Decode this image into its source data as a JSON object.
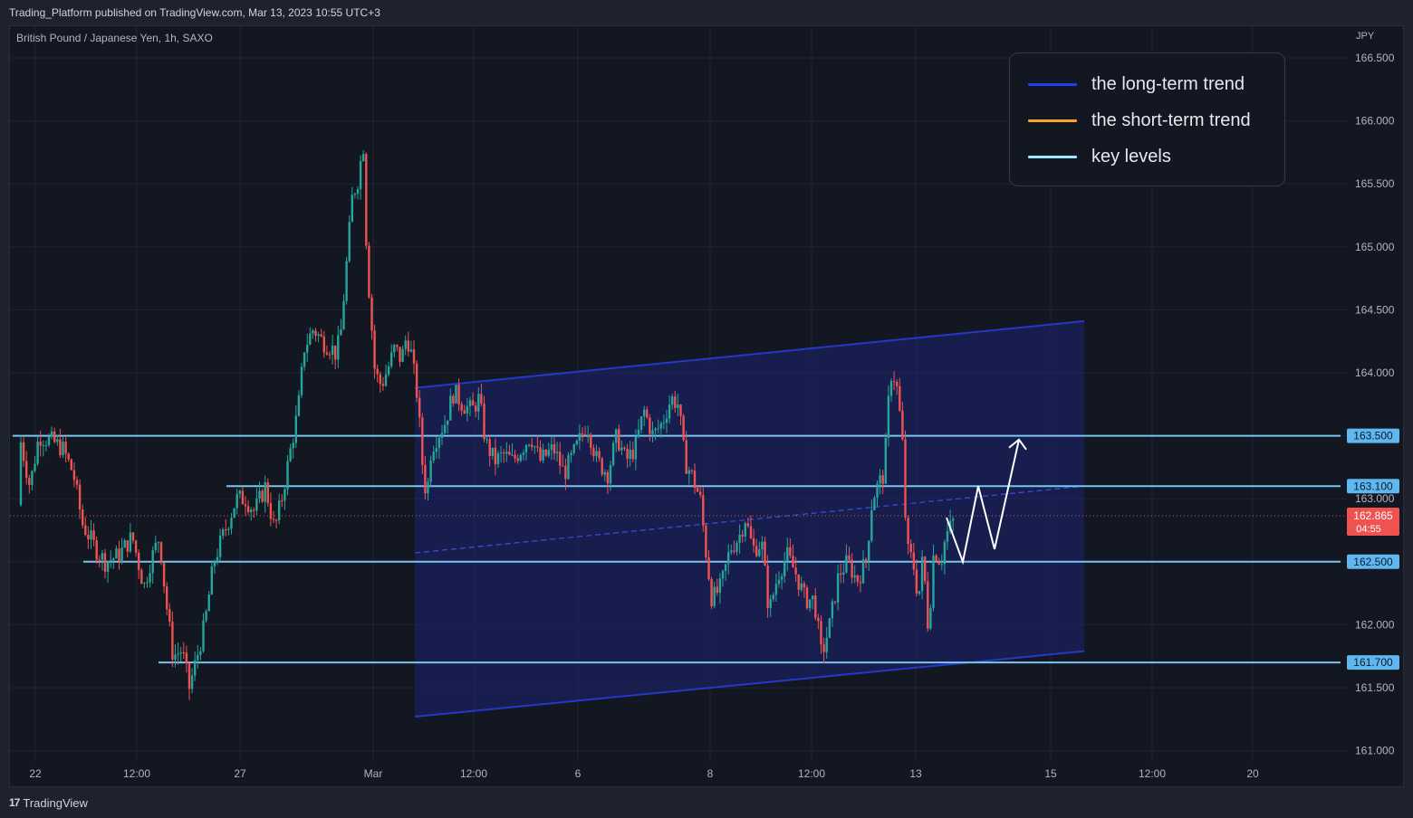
{
  "header": {
    "publish_line": "Trading_Platform published on TradingView.com, Mar 13, 2023 10:55 UTC+3",
    "symbol": "British Pound / Japanese Yen, 1h, SAXO",
    "currency": "JPY"
  },
  "footer": {
    "logo_text": "TradingView",
    "logo_mark": "17"
  },
  "legend": [
    {
      "label": "the long-term trend",
      "color": "#1e3ff0"
    },
    {
      "label": "the short-term trend",
      "color": "#f5a623"
    },
    {
      "label": "key levels",
      "color": "#9fe7ff"
    }
  ],
  "colors": {
    "up": "#26a69a",
    "down": "#ef5350",
    "channel_line": "#2638c8",
    "channel_fill": "#1b2370",
    "key_level": "#7cc4f0",
    "current": "#ef5350",
    "arrow": "#ffffff"
  },
  "chart_data": {
    "type": "candlestick",
    "title": "British Pound / Japanese Yen, 1h, SAXO",
    "ylabel": "JPY",
    "ylim": [
      160.93,
      166.5
    ],
    "y_ticks": [
      "161.000",
      "161.500",
      "162.000",
      "162.500",
      "163.000",
      "163.500",
      "164.000",
      "164.500",
      "165.000",
      "165.500",
      "166.000",
      "166.500"
    ],
    "x_tick_labels": [
      "22",
      "12:00",
      "27",
      "Mar",
      "12:00",
      "6",
      "8",
      "12:00",
      "13",
      "15",
      "12:00",
      "20"
    ],
    "key_levels": [
      {
        "value": 163.5,
        "label": "163.500"
      },
      {
        "value": 163.1,
        "label": "163.100"
      },
      {
        "value": 162.5,
        "label": "162.500"
      },
      {
        "value": 161.7,
        "label": "161.700"
      }
    ],
    "current_price": {
      "value": 162.865,
      "label": "162.865",
      "countdown": "04:55"
    },
    "price_path": [
      [
        0,
        162.95
      ],
      [
        12,
        163.45
      ],
      [
        22,
        163.1
      ],
      [
        32,
        163.5
      ],
      [
        48,
        163.45
      ],
      [
        58,
        163.4
      ],
      [
        70,
        163.2
      ],
      [
        80,
        162.8
      ],
      [
        95,
        162.6
      ],
      [
        105,
        162.5
      ],
      [
        120,
        162.55
      ],
      [
        135,
        162.7
      ],
      [
        148,
        162.3
      ],
      [
        155,
        162.5
      ],
      [
        165,
        162.7
      ],
      [
        172,
        162.2
      ],
      [
        180,
        161.75
      ],
      [
        190,
        161.8
      ],
      [
        198,
        161.5
      ],
      [
        205,
        161.7
      ],
      [
        215,
        162.0
      ],
      [
        225,
        162.5
      ],
      [
        240,
        162.8
      ],
      [
        250,
        163.0
      ],
      [
        260,
        163.0
      ],
      [
        270,
        162.9
      ],
      [
        282,
        163.1
      ],
      [
        292,
        162.75
      ],
      [
        300,
        163.0
      ],
      [
        310,
        163.4
      ],
      [
        318,
        163.7
      ],
      [
        325,
        164.2
      ],
      [
        335,
        164.35
      ],
      [
        345,
        164.25
      ],
      [
        355,
        164.2
      ],
      [
        360,
        164.15
      ],
      [
        365,
        164.3
      ],
      [
        372,
        164.9
      ],
      [
        378,
        165.4
      ],
      [
        385,
        165.55
      ],
      [
        390,
        165.85
      ],
      [
        394,
        164.9
      ],
      [
        398,
        164.5
      ],
      [
        403,
        164.0
      ],
      [
        410,
        163.9
      ],
      [
        418,
        164.05
      ],
      [
        425,
        164.2
      ],
      [
        432,
        164.1
      ],
      [
        438,
        164.3
      ],
      [
        443,
        164.15
      ],
      [
        450,
        163.8
      ],
      [
        455,
        163.3
      ],
      [
        460,
        163.0
      ],
      [
        465,
        163.4
      ],
      [
        472,
        163.5
      ],
      [
        480,
        163.6
      ],
      [
        490,
        163.85
      ],
      [
        500,
        163.75
      ],
      [
        510,
        163.7
      ],
      [
        518,
        163.8
      ],
      [
        525,
        163.45
      ],
      [
        535,
        163.3
      ],
      [
        545,
        163.35
      ],
      [
        555,
        163.3
      ],
      [
        565,
        163.4
      ],
      [
        575,
        163.5
      ],
      [
        585,
        163.3
      ],
      [
        600,
        163.4
      ],
      [
        612,
        163.2
      ],
      [
        625,
        163.4
      ],
      [
        637,
        163.6
      ],
      [
        648,
        163.3
      ],
      [
        660,
        163.2
      ],
      [
        670,
        163.5
      ],
      [
        680,
        163.3
      ],
      [
        690,
        163.4
      ],
      [
        700,
        163.7
      ],
      [
        710,
        163.5
      ],
      [
        720,
        163.6
      ],
      [
        730,
        163.8
      ],
      [
        738,
        163.75
      ],
      [
        745,
        163.3
      ],
      [
        752,
        163.2
      ],
      [
        762,
        163.0
      ],
      [
        768,
        162.6
      ],
      [
        775,
        162.2
      ],
      [
        785,
        162.3
      ],
      [
        795,
        162.6
      ],
      [
        805,
        162.7
      ],
      [
        812,
        162.85
      ],
      [
        820,
        162.6
      ],
      [
        830,
        162.65
      ],
      [
        838,
        162.1
      ],
      [
        848,
        162.4
      ],
      [
        858,
        162.55
      ],
      [
        868,
        162.4
      ],
      [
        878,
        162.2
      ],
      [
        888,
        162.2
      ],
      [
        896,
        161.75
      ],
      [
        905,
        162.0
      ],
      [
        915,
        162.4
      ],
      [
        925,
        162.5
      ],
      [
        935,
        162.35
      ],
      [
        945,
        162.5
      ],
      [
        952,
        163.0
      ],
      [
        958,
        163.1
      ],
      [
        965,
        163.2
      ],
      [
        972,
        164.0
      ],
      [
        978,
        163.95
      ],
      [
        985,
        163.5
      ],
      [
        990,
        162.6
      ],
      [
        997,
        162.5
      ],
      [
        1003,
        162.2
      ],
      [
        1008,
        162.55
      ],
      [
        1014,
        161.95
      ],
      [
        1020,
        162.6
      ],
      [
        1028,
        162.5
      ],
      [
        1033,
        162.7
      ],
      [
        1040,
        162.8
      ],
      [
        1045,
        162.87
      ]
    ]
  },
  "overlays": {
    "channel_upper": [
      [
        458,
        163.88
      ],
      [
        1197,
        164.41
      ]
    ],
    "channel_lower": [
      [
        458,
        161.27
      ],
      [
        1197,
        161.79
      ]
    ],
    "channel_mid": [
      [
        458,
        162.57
      ],
      [
        1197,
        163.1
      ]
    ],
    "projection_path": [
      [
        1045,
        162.85
      ],
      [
        1063,
        162.5
      ],
      [
        1080,
        163.1
      ],
      [
        1098,
        162.6
      ],
      [
        1125,
        163.47
      ]
    ],
    "key_levels_x": [
      [
        14,
        1480
      ],
      [
        250,
        1480
      ],
      [
        92,
        1480
      ],
      [
        175,
        1480
      ]
    ]
  }
}
